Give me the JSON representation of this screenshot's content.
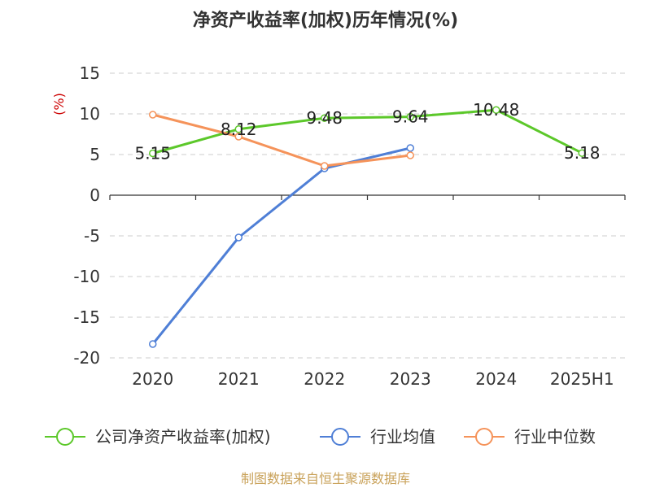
{
  "chart_data": {
    "type": "line",
    "title": "净资产收益率(加权)历年情况(%)",
    "ylabel": "(%)",
    "categories": [
      "2020",
      "2021",
      "2022",
      "2023",
      "2024",
      "2025H1"
    ],
    "ylim": [
      -20,
      15
    ],
    "yticks": [
      15,
      10,
      5,
      0,
      -5,
      -10,
      -15,
      -20
    ],
    "grid": true,
    "legend_position": "bottom",
    "series": [
      {
        "name": "公司净资产收益率(加权)",
        "color": "#5cc82a",
        "values": [
          5.15,
          8.12,
          9.48,
          9.64,
          10.48,
          5.18
        ],
        "labels": [
          "5.15",
          "8.12",
          "9.48",
          "9.64",
          "10.48",
          "5.18"
        ]
      },
      {
        "name": "行业均值",
        "color": "#4f7fd6",
        "values": [
          -18.3,
          -5.2,
          3.3,
          5.8,
          null,
          null
        ]
      },
      {
        "name": "行业中位数",
        "color": "#f5935a",
        "values": [
          9.9,
          7.2,
          3.6,
          4.9,
          null,
          null
        ]
      }
    ]
  },
  "source": "制图数据来自恒生聚源数据库"
}
